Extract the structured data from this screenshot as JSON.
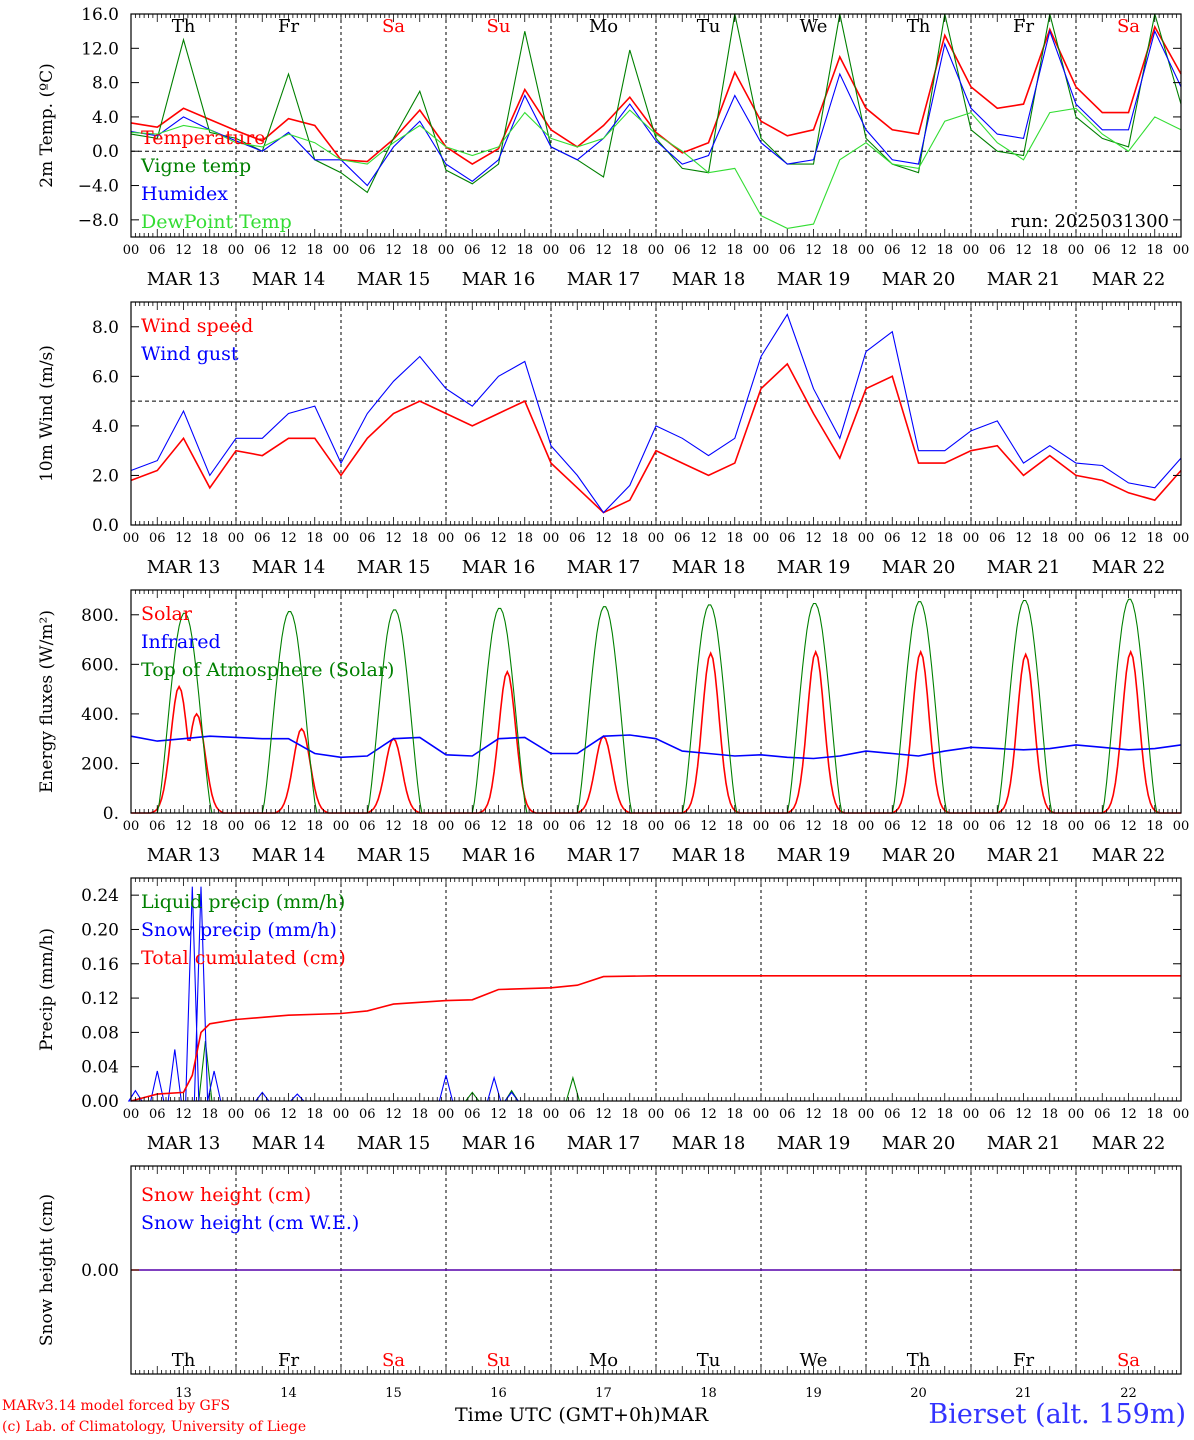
{
  "days": [
    {
      "dow": "Th",
      "date": "MAR 13",
      "dnum": "13",
      "weekend": false
    },
    {
      "dow": "Fr",
      "date": "MAR 14",
      "dnum": "14",
      "weekend": false
    },
    {
      "dow": "Sa",
      "date": "MAR 15",
      "dnum": "15",
      "weekend": true
    },
    {
      "dow": "Su",
      "date": "MAR 16",
      "dnum": "16",
      "weekend": true
    },
    {
      "dow": "Mo",
      "date": "MAR 17",
      "dnum": "17",
      "weekend": false
    },
    {
      "dow": "Tu",
      "date": "MAR 18",
      "dnum": "18",
      "weekend": false
    },
    {
      "dow": "We",
      "date": "MAR 19",
      "dnum": "19",
      "weekend": false
    },
    {
      "dow": "Th",
      "date": "MAR 20",
      "dnum": "20",
      "weekend": false
    },
    {
      "dow": "Fr",
      "date": "MAR 21",
      "dnum": "21",
      "weekend": false
    },
    {
      "dow": "Sa",
      "date": "MAR 22",
      "dnum": "22",
      "weekend": true
    }
  ],
  "hour_labels": [
    "00",
    "06",
    "12",
    "18"
  ],
  "end_hour_label": "00",
  "footer": {
    "credit_line1": "MARv3.14 model forced by GFS",
    "credit_line2": "(c) Lab. of Climatology, University of Liege",
    "xlabel": "Time UTC (GMT+0h)",
    "month": "MAR",
    "station": "Bierset (alt. 159m)"
  },
  "colors": {
    "red": "#ff0000",
    "blue": "#0000ff",
    "green": "#008000",
    "lightgreen": "#33dd33",
    "weekend": "#ff0000"
  },
  "chart_data": [
    {
      "type": "line",
      "ylabel": "2m Temp. (ºC)",
      "ylim": [
        -10,
        16
      ],
      "yticks": [
        -8,
        -4,
        0,
        4,
        8,
        12,
        16
      ],
      "ytick_labels": [
        "−8.0",
        "−4.0",
        "0.0",
        "4.0",
        "8.0",
        "12.0",
        "16.0"
      ],
      "ref_line": 0,
      "annotation": "run: 2025031300",
      "x_hours": [
        0,
        6,
        12,
        18,
        24,
        30,
        36,
        42,
        48,
        54,
        60,
        66,
        72,
        78,
        84,
        90,
        96,
        102,
        108,
        114,
        120,
        126,
        132,
        138,
        144,
        150,
        156,
        162,
        168,
        174,
        180,
        186,
        192,
        198,
        204,
        210,
        216,
        222,
        228,
        234,
        240
      ],
      "series": [
        {
          "name": "Temperature",
          "color": "red",
          "values": [
            3.3,
            2.8,
            5.0,
            3.7,
            2.4,
            1.2,
            3.8,
            3.0,
            -1.0,
            -1.2,
            1.4,
            4.8,
            0.5,
            -1.5,
            0.3,
            7.2,
            2.5,
            0.5,
            3.0,
            6.3,
            2.2,
            -0.2,
            1.0,
            9.2,
            3.5,
            1.8,
            2.5,
            11.0,
            5.0,
            2.5,
            2.0,
            13.5,
            7.5,
            5.0,
            5.5,
            14.2,
            7.5,
            4.5,
            4.5,
            14.5,
            9.0
          ]
        },
        {
          "name": "Vigne temp",
          "color": "green",
          "values": [
            2.0,
            1.5,
            13.0,
            2.2,
            1.5,
            0.0,
            9.0,
            -1.0,
            -2.5,
            -4.8,
            1.5,
            7.0,
            -2.2,
            -3.8,
            -1.5,
            14.0,
            0.5,
            -1.0,
            -3.0,
            11.8,
            1.5,
            -2.0,
            -2.5,
            17.0,
            1.5,
            -1.5,
            -1.5,
            17.0,
            1.5,
            -1.5,
            -2.5,
            17.0,
            2.5,
            0.0,
            -0.5,
            17.0,
            4.0,
            1.5,
            0.5,
            17.0,
            5.5
          ]
        },
        {
          "name": "Humidex",
          "color": "blue",
          "values": [
            2.3,
            1.8,
            4.0,
            2.5,
            1.2,
            0.0,
            2.2,
            -1.0,
            -1.0,
            -4.0,
            0.5,
            3.5,
            -1.5,
            -3.5,
            -1.0,
            6.5,
            0.5,
            -1.0,
            1.5,
            5.5,
            1.2,
            -1.5,
            -0.5,
            6.5,
            1.0,
            -1.5,
            -1.0,
            9.0,
            2.5,
            -1.0,
            -1.5,
            12.5,
            5.0,
            2.0,
            1.5,
            14.0,
            5.5,
            2.5,
            2.5,
            14.0,
            7.5
          ]
        },
        {
          "name": "DewPoint Temp",
          "color": "lightgreen",
          "values": [
            2.2,
            2.0,
            3.0,
            2.5,
            1.0,
            0.5,
            2.0,
            1.0,
            -1.0,
            -1.5,
            1.0,
            3.0,
            0.5,
            -0.5,
            0.5,
            4.5,
            1.5,
            0.5,
            1.5,
            4.8,
            2.0,
            0.0,
            -2.5,
            -2.0,
            -7.5,
            -9.0,
            -8.5,
            -1.0,
            1.0,
            -1.5,
            -2.0,
            3.5,
            4.5,
            1.0,
            -1.0,
            4.5,
            5.0,
            2.0,
            0.0,
            4.0,
            2.5
          ]
        }
      ]
    },
    {
      "type": "line",
      "ylabel": "10m Wind (m/s)",
      "ylim": [
        0,
        9
      ],
      "yticks": [
        0,
        2,
        4,
        6,
        8
      ],
      "ytick_labels": [
        "0.0",
        "2.0",
        "4.0",
        "6.0",
        "8.0"
      ],
      "ref_line": 5,
      "x_hours": [
        0,
        6,
        12,
        18,
        24,
        30,
        36,
        42,
        48,
        54,
        60,
        66,
        72,
        78,
        84,
        90,
        96,
        102,
        108,
        114,
        120,
        126,
        132,
        138,
        144,
        150,
        156,
        162,
        168,
        174,
        180,
        186,
        192,
        198,
        204,
        210,
        216,
        222,
        228,
        234,
        240
      ],
      "series": [
        {
          "name": "Wind speed",
          "color": "red",
          "values": [
            1.8,
            2.2,
            3.5,
            1.5,
            3.0,
            2.8,
            3.5,
            3.5,
            2.0,
            3.5,
            4.5,
            5.0,
            4.5,
            4.0,
            4.5,
            5.0,
            2.5,
            1.5,
            0.5,
            1.0,
            3.0,
            2.5,
            2.0,
            2.5,
            5.5,
            6.5,
            4.5,
            2.7,
            5.5,
            6.0,
            2.5,
            2.5,
            3.0,
            3.2,
            2.0,
            2.8,
            2.0,
            1.8,
            1.3,
            1.0,
            2.2
          ]
        },
        {
          "name": "Wind gust",
          "color": "blue",
          "values": [
            2.2,
            2.6,
            4.6,
            2.0,
            3.5,
            3.5,
            4.5,
            4.8,
            2.5,
            4.5,
            5.8,
            6.8,
            5.5,
            4.8,
            6.0,
            6.6,
            3.2,
            2.0,
            0.5,
            1.6,
            4.0,
            3.5,
            2.8,
            3.5,
            6.8,
            8.5,
            5.5,
            3.5,
            7.0,
            7.8,
            3.0,
            3.0,
            3.8,
            4.2,
            2.5,
            3.2,
            2.5,
            2.4,
            1.7,
            1.5,
            2.7
          ]
        }
      ]
    },
    {
      "type": "line",
      "ylabel": "Energy fluxes (W/m²)",
      "ylim": [
        0,
        900
      ],
      "yticks": [
        0,
        200,
        400,
        600,
        800
      ],
      "ytick_labels": [
        "0.",
        "200.",
        "400.",
        "600.",
        "800."
      ],
      "series": [
        {
          "name": "Solar",
          "color": "red",
          "peaks": [
            {
              "day": 0,
              "hour": 11,
              "value": 510
            },
            {
              "day": 0,
              "hour": 15,
              "value": 400
            },
            {
              "day": 1,
              "hour": 15,
              "value": 340
            },
            {
              "day": 2,
              "hour": 12,
              "value": 300
            },
            {
              "day": 3,
              "hour": 14,
              "value": 570
            },
            {
              "day": 4,
              "hour": 12,
              "value": 310
            },
            {
              "day": 5,
              "hour": 12.5,
              "value": 645
            },
            {
              "day": 6,
              "hour": 12.5,
              "value": 650
            },
            {
              "day": 7,
              "hour": 12.5,
              "value": 650
            },
            {
              "day": 8,
              "hour": 12.5,
              "value": 640
            },
            {
              "day": 9,
              "hour": 12.5,
              "value": 650
            }
          ]
        },
        {
          "name": "Infrared",
          "color": "blue",
          "x_hours": [
            0,
            6,
            12,
            18,
            24,
            30,
            36,
            42,
            48,
            54,
            60,
            66,
            72,
            78,
            84,
            90,
            96,
            102,
            108,
            114,
            120,
            126,
            132,
            138,
            144,
            150,
            156,
            162,
            168,
            174,
            180,
            186,
            192,
            198,
            204,
            210,
            216,
            222,
            228,
            234,
            240
          ],
          "values": [
            310,
            290,
            300,
            310,
            305,
            300,
            300,
            240,
            225,
            230,
            300,
            305,
            235,
            230,
            300,
            305,
            240,
            240,
            310,
            315,
            300,
            250,
            240,
            230,
            235,
            225,
            220,
            230,
            250,
            240,
            230,
            250,
            265,
            260,
            255,
            260,
            275,
            265,
            255,
            260,
            275
          ]
        },
        {
          "name": "Top of Atmosphere (Solar)",
          "color": "green",
          "daily_peak": [
            808,
            815,
            822,
            828,
            835,
            842,
            848,
            855,
            860,
            865
          ]
        }
      ]
    },
    {
      "type": "line",
      "ylabel": "Precip (mm/h)",
      "ylim": [
        0,
        0.26
      ],
      "yticks": [
        0,
        0.04,
        0.08,
        0.12,
        0.16,
        0.2,
        0.24
      ],
      "ytick_labels": [
        "0.00",
        "0.04",
        "0.08",
        "0.12",
        "0.16",
        "0.20",
        "0.24"
      ],
      "series": [
        {
          "name": "Liquid precip (mm/h)",
          "color": "green",
          "events": [
            {
              "hour": 17,
              "value": 0.07
            },
            {
              "hour": 78,
              "value": 0.01
            },
            {
              "hour": 87,
              "value": 0.012
            },
            {
              "hour": 101,
              "value": 0.027
            }
          ]
        },
        {
          "name": "Snow precip (mm/h)",
          "color": "blue",
          "events": [
            {
              "hour": 1,
              "value": 0.012
            },
            {
              "hour": 6,
              "value": 0.035
            },
            {
              "hour": 10,
              "value": 0.06
            },
            {
              "hour": 14,
              "value": 0.25
            },
            {
              "hour": 16,
              "value": 0.25
            },
            {
              "hour": 19,
              "value": 0.035
            },
            {
              "hour": 30,
              "value": 0.01
            },
            {
              "hour": 38,
              "value": 0.008
            },
            {
              "hour": 72,
              "value": 0.03
            },
            {
              "hour": 83,
              "value": 0.027
            },
            {
              "hour": 87,
              "value": 0.01
            }
          ]
        },
        {
          "name": "Total cumulated (cm)",
          "color": "red",
          "x_hours": [
            0,
            6,
            12,
            14,
            16,
            18,
            24,
            36,
            48,
            54,
            60,
            72,
            78,
            84,
            96,
            102,
            108,
            120,
            168,
            240
          ],
          "values": [
            0.0,
            0.008,
            0.01,
            0.03,
            0.08,
            0.09,
            0.095,
            0.1,
            0.102,
            0.105,
            0.113,
            0.117,
            0.118,
            0.13,
            0.132,
            0.135,
            0.145,
            0.146,
            0.146,
            0.146
          ]
        }
      ]
    },
    {
      "type": "line",
      "ylabel": "Snow height (cm)",
      "ylim": [
        -1,
        1
      ],
      "yticks": [
        0
      ],
      "ytick_labels": [
        "0.00"
      ],
      "series": [
        {
          "name": "Snow height (cm)",
          "color": "red",
          "x_hours": [
            0,
            240
          ],
          "values": [
            0,
            0
          ]
        },
        {
          "name": "Snow height (cm W.E.)",
          "color": "blue",
          "x_hours": [
            0,
            240
          ],
          "values": [
            0,
            0
          ]
        }
      ]
    }
  ]
}
